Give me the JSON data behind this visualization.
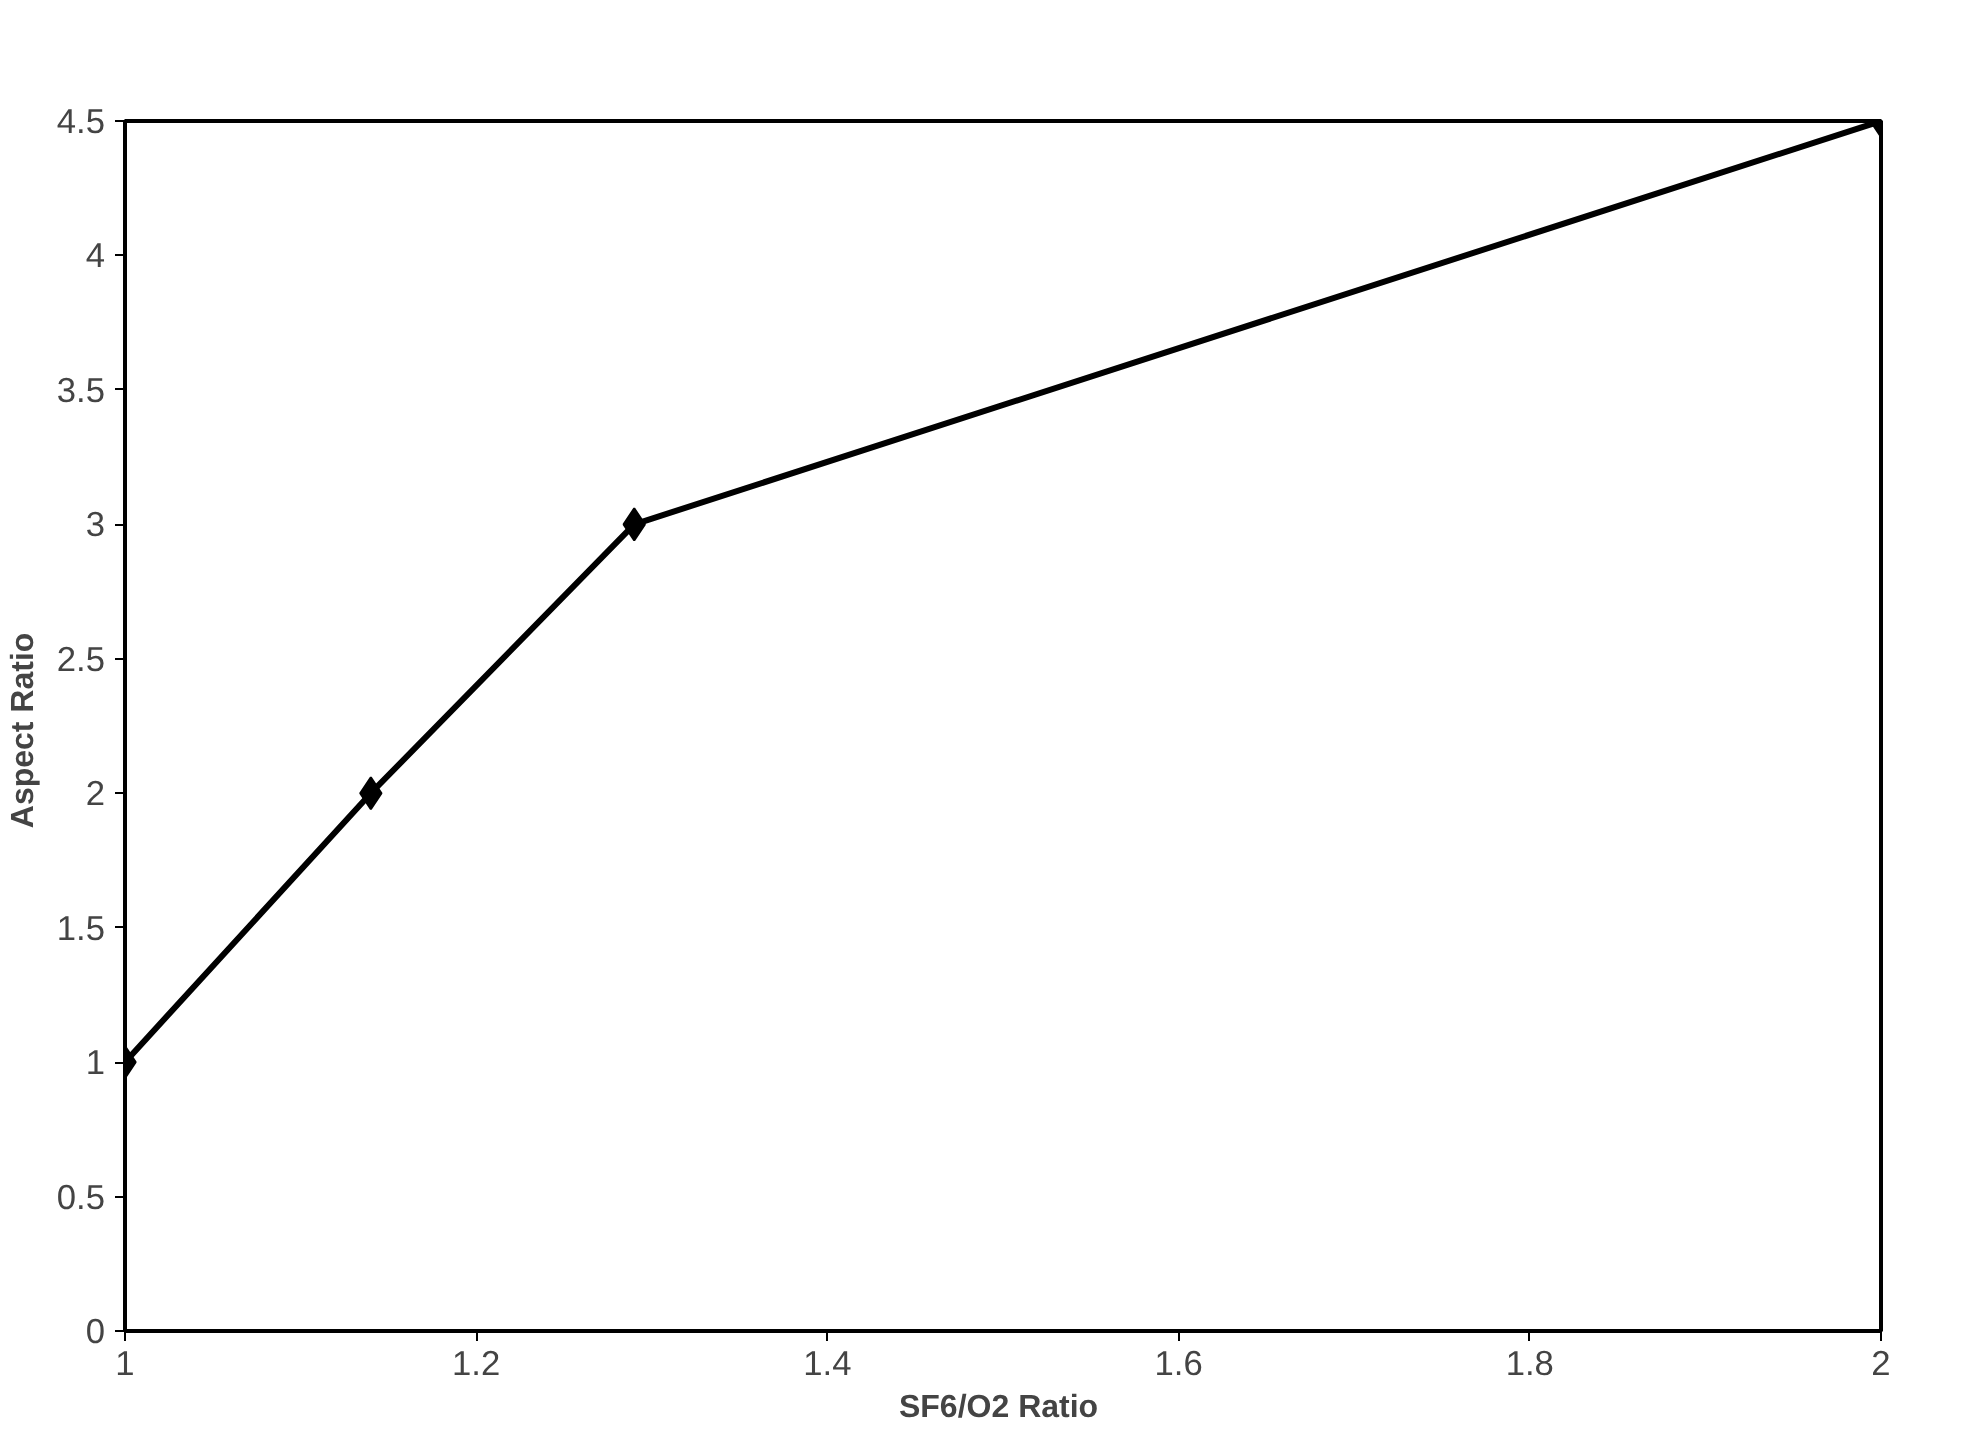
{
  "chart_data": {
    "type": "line",
    "xlabel": "SF6/O2  Ratio",
    "ylabel": "Aspect  Ratio",
    "x": [
      1,
      1.14,
      1.29,
      2
    ],
    "series": [
      {
        "color": "#000000",
        "values": [
          1,
          2,
          3,
          4.5
        ]
      }
    ],
    "xlim": [
      1,
      2
    ],
    "xticks": [
      1,
      1.2,
      1.4,
      1.6,
      1.8,
      2
    ],
    "ylim": [
      0,
      4.5
    ],
    "yticks": [
      0,
      0.5,
      1,
      1.5,
      2,
      2.5,
      3,
      3.5,
      4,
      4.5
    ],
    "grid": false,
    "marker": "diamond",
    "line_style": "solid"
  }
}
